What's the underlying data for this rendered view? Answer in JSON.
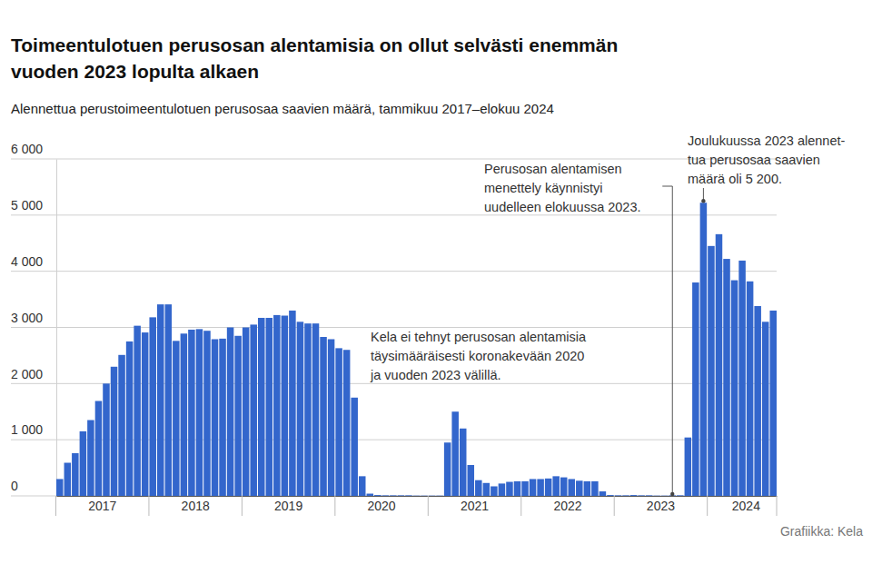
{
  "chart_data": {
    "type": "bar",
    "title": [
      "Toimeentulotuen perusosan alentamisia on ollut selvästi enemmän",
      "vuoden 2023 lopulta alkaen"
    ],
    "subtitle": "Alennettua perustoimeentulotuen perusosaa saavien määrä, tammikuu 2017–elokuu 2024",
    "source": "Grafiikka: Kela",
    "annotations": [
      [
        "Kela ei tehnyt perusosan alentamisia",
        "täysimääräisesti koronakevään 2020",
        "ja vuoden 2023 välillä."
      ],
      [
        "Perusosan alentamisen",
        "menettely käynnistyi",
        "uudelleen elokuussa 2023."
      ],
      [
        "Joulukuussa 2023 alennet-",
        "tua perusosaa saavien",
        "määrä oli 5 200."
      ]
    ],
    "categories": [
      null,
      null,
      null,
      null,
      null,
      null,
      "2017",
      null,
      null,
      null,
      null,
      null,
      null,
      null,
      null,
      null,
      null,
      null,
      "2018",
      null,
      null,
      null,
      null,
      null,
      null,
      null,
      null,
      null,
      null,
      null,
      "2019",
      null,
      null,
      null,
      null,
      null,
      null,
      null,
      null,
      null,
      null,
      null,
      "2020",
      null,
      null,
      null,
      null,
      null,
      null,
      null,
      null,
      null,
      null,
      null,
      "2021",
      null,
      null,
      null,
      null,
      null,
      null,
      null,
      null,
      null,
      null,
      null,
      "2022",
      null,
      null,
      null,
      null,
      null,
      null,
      null,
      null,
      null,
      null,
      null,
      "2023",
      null,
      null,
      null,
      null,
      null,
      null,
      null,
      null,
      null,
      null,
      "2024",
      null,
      null,
      null
    ],
    "values": [
      300,
      590,
      760,
      1150,
      1350,
      1690,
      2000,
      2300,
      2510,
      2750,
      3030,
      2910,
      3180,
      3410,
      3410,
      2760,
      2890,
      2960,
      2970,
      2940,
      2790,
      2800,
      3000,
      2850,
      3000,
      3050,
      3170,
      3170,
      3220,
      3210,
      3300,
      3100,
      3070,
      3070,
      2830,
      2790,
      2630,
      2600,
      1750,
      350,
      40,
      15,
      10,
      10,
      10,
      10,
      5,
      5,
      5,
      5,
      950,
      1500,
      1200,
      550,
      280,
      230,
      170,
      220,
      250,
      260,
      260,
      300,
      300,
      310,
      350,
      330,
      300,
      270,
      260,
      260,
      80,
      15,
      10,
      10,
      15,
      10,
      10,
      5,
      5,
      10,
      10,
      1040,
      3800,
      5220,
      4450,
      4660,
      4220,
      3840,
      4190,
      3820,
      3380,
      3100,
      3300
    ],
    "color": "#3366cc",
    "ylim": [
      0,
      6000
    ],
    "yticks": [
      0,
      {
        "value": 1000,
        "label": "1 000"
      },
      {
        "value": 2000,
        "label": "2 000"
      },
      {
        "value": 3000,
        "label": "3 000"
      },
      {
        "value": 4000,
        "label": "4 000"
      },
      {
        "value": 5000,
        "label": "5 000"
      },
      {
        "value": 6000,
        "label": "6 000"
      }
    ],
    "grid": true
  }
}
